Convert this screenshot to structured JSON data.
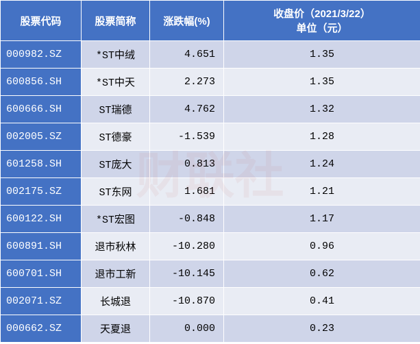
{
  "watermark": "财联社",
  "headers": {
    "code": "股票代码",
    "name": "股票简称",
    "change": "涨跌幅(%)",
    "price_line1": "收盘价（2021/3/22）",
    "price_line2": "单位（元）"
  },
  "colors": {
    "header_bg": "#4472c4",
    "header_text": "#ffffff",
    "row_odd_bg": "#cfd5e9",
    "row_even_bg": "#e9ecf4",
    "code_cell_bg": "#4472c4",
    "code_cell_text": "#ffffff",
    "cell_text": "#000000",
    "border": "#ffffff"
  },
  "rows": [
    {
      "code": "000982.SZ",
      "name": "*ST中绒",
      "change": "4.651",
      "price": "1.35"
    },
    {
      "code": "600856.SH",
      "name": "*ST中天",
      "change": "2.273",
      "price": "1.35"
    },
    {
      "code": "600666.SH",
      "name": "ST瑞德",
      "change": "4.762",
      "price": "1.32"
    },
    {
      "code": "002005.SZ",
      "name": "ST德豪",
      "change": "-1.539",
      "price": "1.28"
    },
    {
      "code": "601258.SH",
      "name": "ST庞大",
      "change": "0.813",
      "price": "1.24"
    },
    {
      "code": "002175.SZ",
      "name": "ST东网",
      "change": "1.681",
      "price": "1.21"
    },
    {
      "code": "600122.SH",
      "name": "*ST宏图",
      "change": "-0.848",
      "price": "1.17"
    },
    {
      "code": "600891.SH",
      "name": "退市秋林",
      "change": "-10.280",
      "price": "0.96"
    },
    {
      "code": "600701.SH",
      "name": "退市工新",
      "change": "-10.145",
      "price": "0.62"
    },
    {
      "code": "002071.SZ",
      "name": "长城退",
      "change": "-10.870",
      "price": "0.41"
    },
    {
      "code": "000662.SZ",
      "name": "天夏退",
      "change": "0.000",
      "price": "0.23"
    }
  ]
}
